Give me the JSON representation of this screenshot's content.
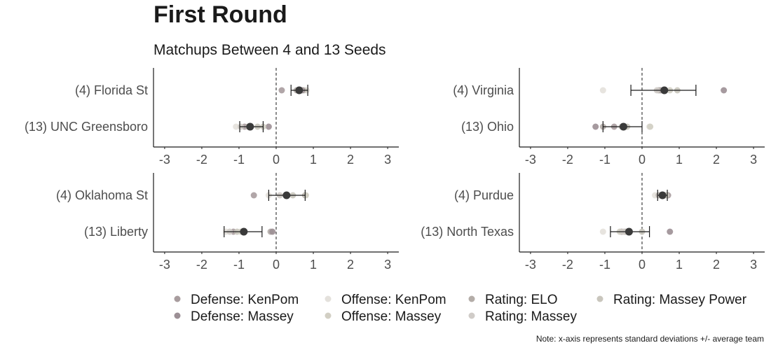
{
  "title": "First Round",
  "subtitle": "Matchups Between 4 and 13 Seeds",
  "note": "Note: x-axis represents standard deviations +/- average team",
  "chart_data": {
    "type": "scatter",
    "xlim": [
      -3.3,
      3.3
    ],
    "x_ticks": [
      -3,
      -2,
      -1,
      0,
      1,
      2,
      3
    ],
    "x_tick_labels": [
      "-3",
      "-2",
      "-1",
      "0",
      "1",
      "2",
      "3"
    ],
    "reference_line": 0,
    "grid": false,
    "legend_position": "bottom",
    "series": [
      {
        "name": "Defense: KenPom",
        "color": "#a89c9e"
      },
      {
        "name": "Offense: KenPom",
        "color": "#e4e1dc"
      },
      {
        "name": "Rating: ELO",
        "color": "#b4ada8"
      },
      {
        "name": "Rating: Massey Power",
        "color": "#c9c6bd"
      },
      {
        "name": "Defense: Massey",
        "color": "#9c8f95"
      },
      {
        "name": "Offense: Massey",
        "color": "#d2cfc4"
      },
      {
        "name": "Rating: Massey",
        "color": "#d0ccc8"
      }
    ],
    "panels": [
      {
        "teams": [
          {
            "label": "(4) Florida St",
            "mean": 0.62,
            "low": 0.4,
            "high": 0.85,
            "points": [
              0.15,
              0.82,
              0.55,
              0.75,
              0.7,
              0.6,
              0.65
            ]
          },
          {
            "label": "(13) UNC Greensboro",
            "mean": -0.7,
            "low": -0.98,
            "high": -0.35,
            "points": [
              -0.85,
              -1.08,
              -0.75,
              -0.5,
              -0.2,
              -0.35,
              -0.95
            ]
          }
        ]
      },
      {
        "teams": [
          {
            "label": "(4) Virginia",
            "mean": 0.6,
            "low": -0.3,
            "high": 1.45,
            "points": [
              0.5,
              -1.05,
              0.45,
              0.95,
              2.2,
              0.75,
              0.4
            ]
          },
          {
            "label": "(13) Ohio",
            "mean": -0.5,
            "low": -1.05,
            "high": 0.0,
            "points": [
              -0.75,
              0.2,
              -1.05,
              -0.4,
              -1.25,
              0.22,
              -0.55
            ]
          }
        ]
      },
      {
        "teams": [
          {
            "label": "(4) Oklahoma St",
            "mean": 0.28,
            "low": -0.2,
            "high": 0.78,
            "points": [
              -0.6,
              -0.2,
              0.78,
              0.45,
              0.3,
              0.8,
              0.1
            ]
          },
          {
            "label": "(13) Liberty",
            "mean": -0.87,
            "low": -1.4,
            "high": -0.38,
            "points": [
              -1.15,
              -1.35,
              -0.15,
              -1.05,
              -0.1,
              -0.95,
              -1.25
            ]
          }
        ]
      },
      {
        "teams": [
          {
            "label": "(4) Purdue",
            "mean": 0.55,
            "low": 0.42,
            "high": 0.68,
            "points": [
              0.7,
              0.35,
              0.45,
              0.55,
              0.6,
              0.65,
              0.5
            ]
          },
          {
            "label": "(13) North Texas",
            "mean": -0.35,
            "low": -0.85,
            "high": 0.2,
            "points": [
              -0.55,
              -1.05,
              -0.45,
              0.0,
              0.75,
              -0.6,
              -0.5
            ]
          }
        ]
      }
    ]
  }
}
